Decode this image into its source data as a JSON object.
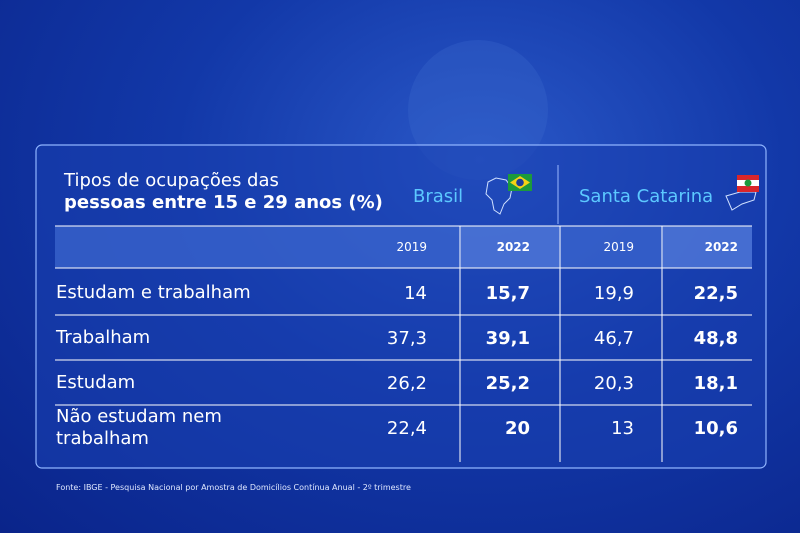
{
  "header": {
    "title_line1": "Tipos de ocupações das",
    "title_line2": "pessoas entre 15 e 29 anos (%)",
    "regions": [
      "Brasil",
      "Santa Catarina"
    ],
    "years": [
      "2019",
      "2022",
      "2019",
      "2022"
    ]
  },
  "table": {
    "rows": [
      [
        "Estudam e trabalham",
        "14",
        "15,7",
        "19,9",
        "22,5"
      ],
      [
        "Trabalham",
        "37,3",
        "39,1",
        "46,7",
        "48,8"
      ],
      [
        "Estudam",
        "26,2",
        "25,2",
        "20,3",
        "18,1"
      ],
      [
        "Não estudam nem trabalham",
        "22,4",
        "20",
        "13",
        "10,6"
      ]
    ]
  },
  "footer": {
    "source": "Fonte: IBGE - Pesquisa Nacional por Amostra de Domicílios Contínua Anual - 2º trimestre"
  }
}
